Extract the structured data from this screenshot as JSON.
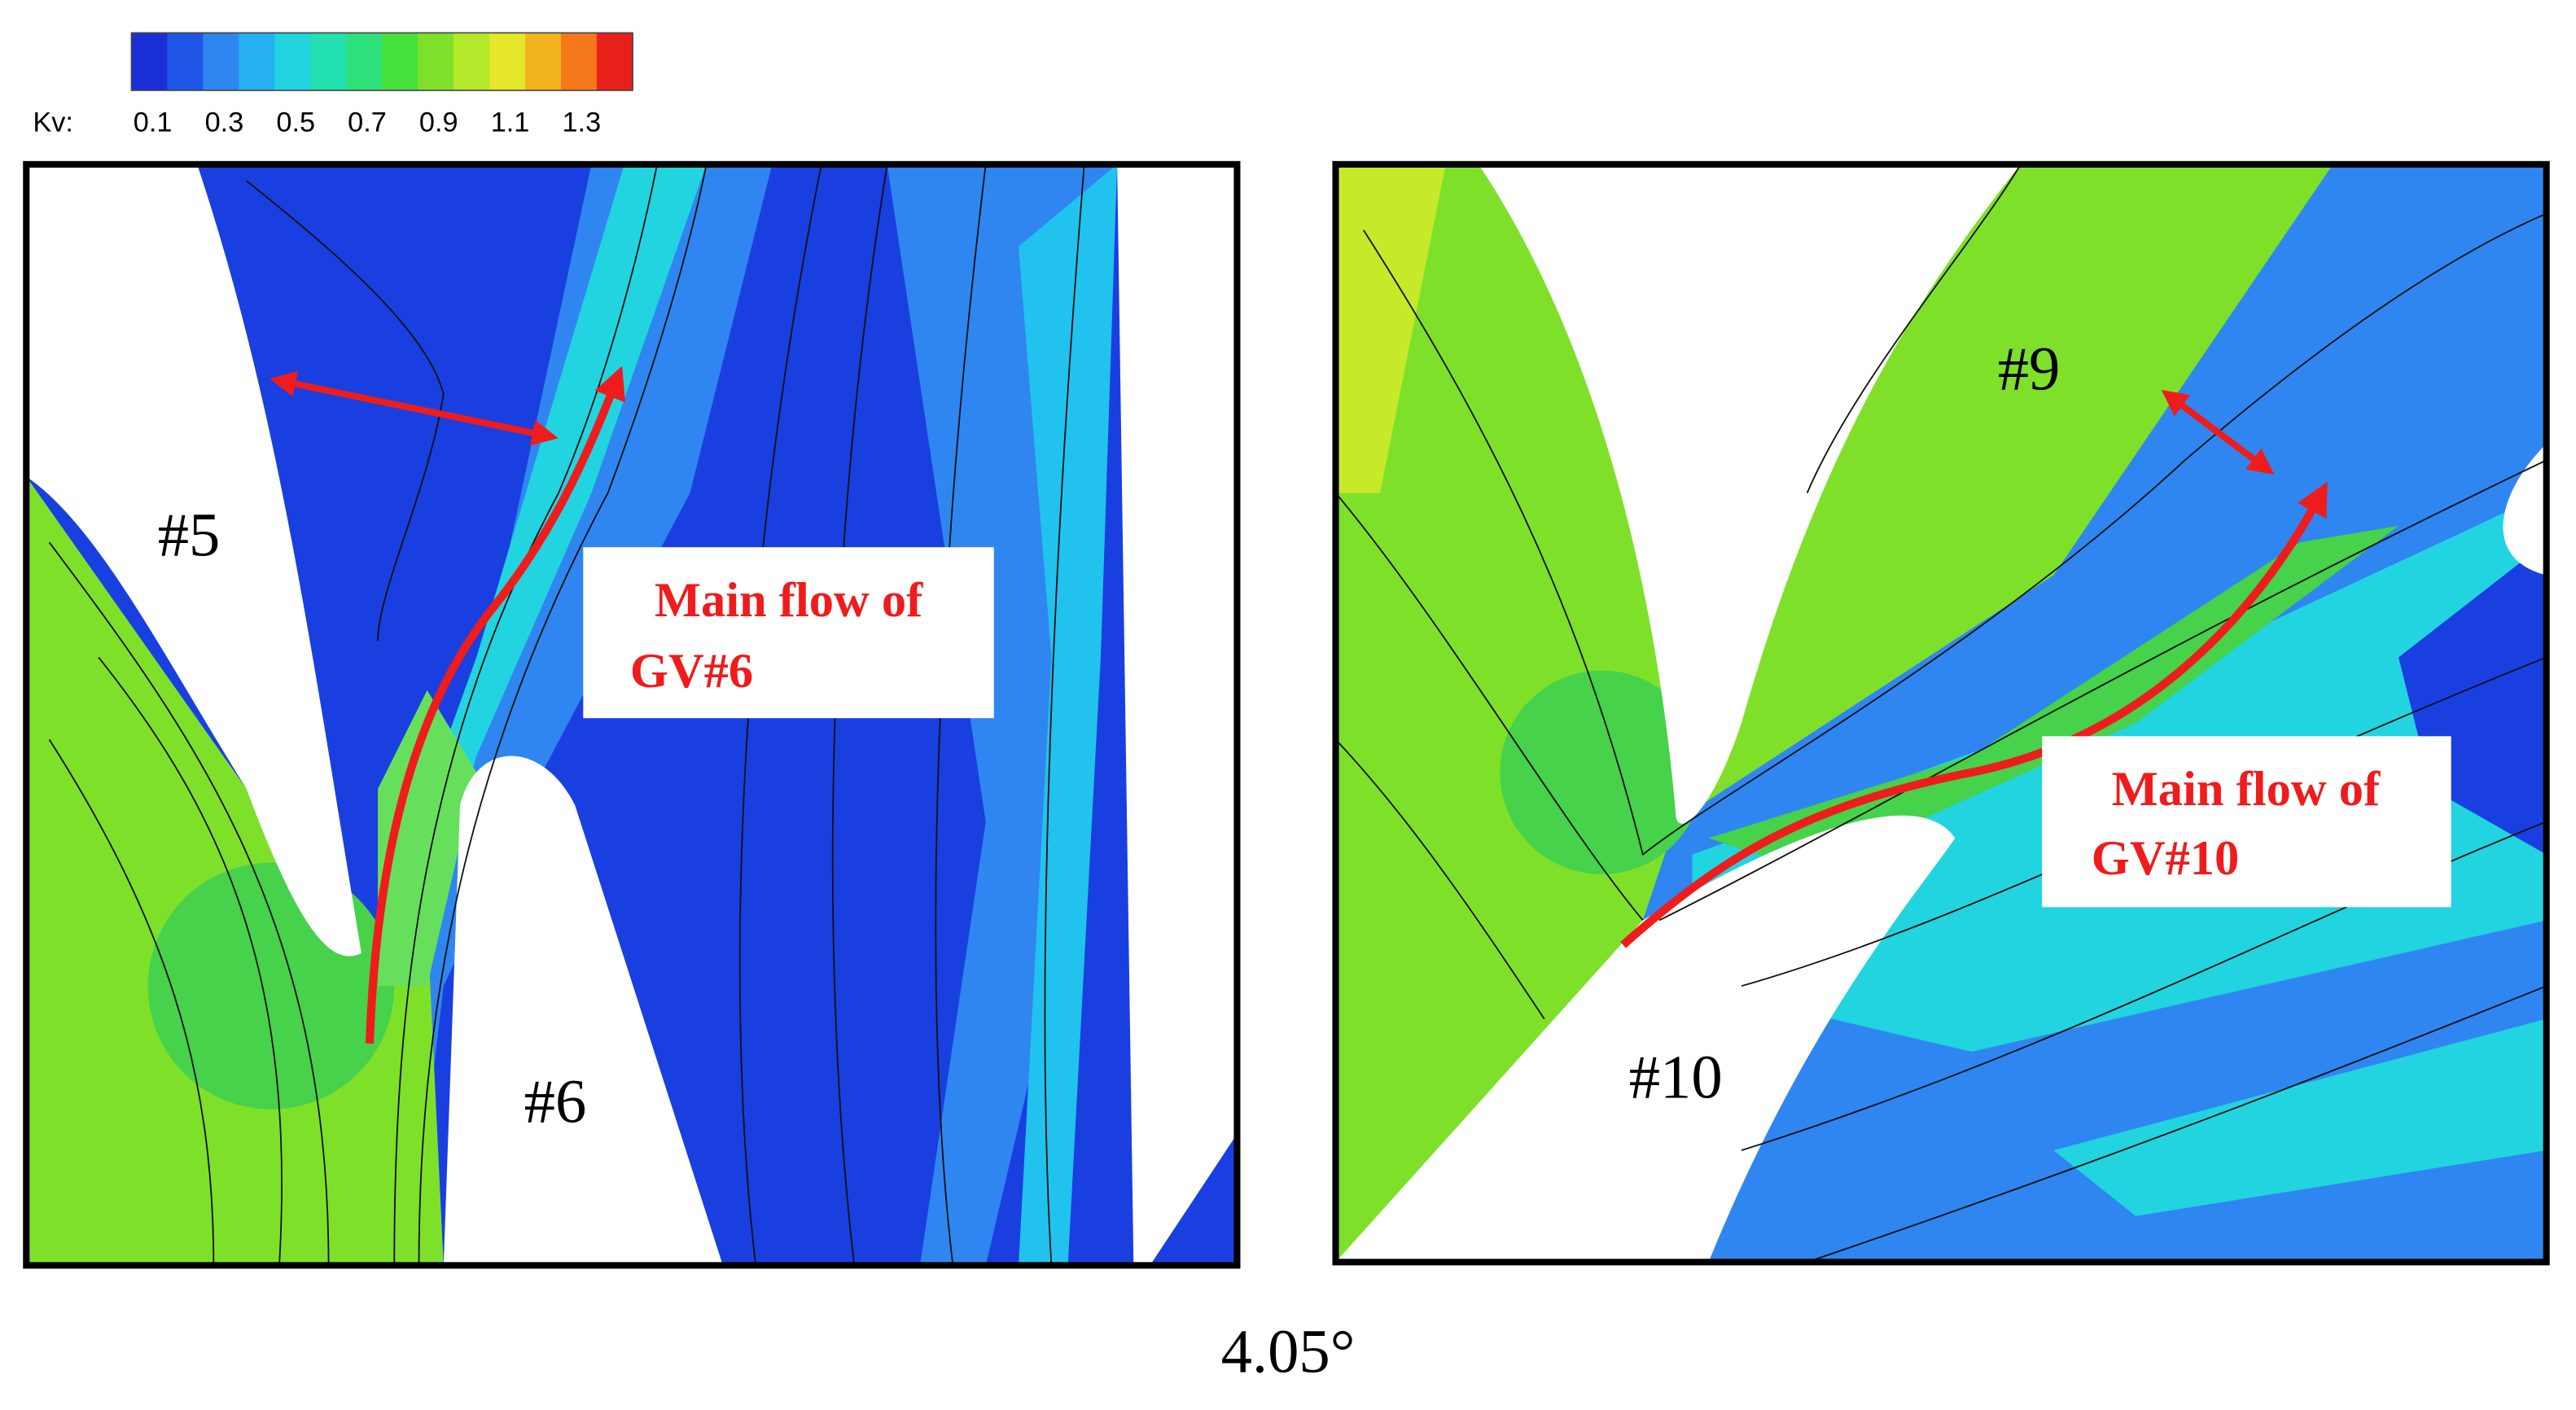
{
  "colorbar": {
    "label": "Kv:",
    "ticks": [
      0.1,
      0.3,
      0.5,
      0.7,
      0.9,
      1.1,
      1.3
    ]
  },
  "panels": [
    {
      "labels": [
        "#5",
        "#6"
      ],
      "annotation": [
        "Main flow of",
        "GV#6"
      ]
    },
    {
      "labels": [
        "#9",
        "#10"
      ],
      "annotation": [
        "Main flow of",
        "GV#10"
      ]
    }
  ],
  "caption": "4.05°"
}
